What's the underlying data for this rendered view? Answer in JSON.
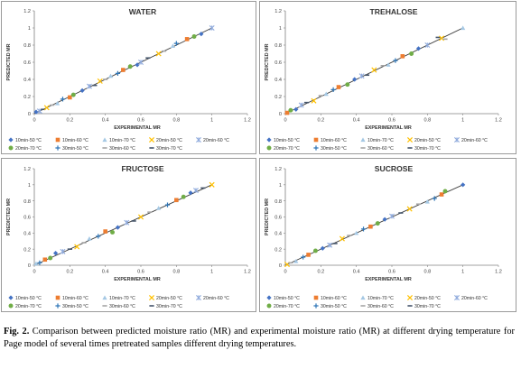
{
  "caption": {
    "label": "Fig. 2.",
    "text": "Comparison between predicted moisture ratio (MR) and experimental moisture ratio (MR) at different drying temperature for Page model of several times pretreated samples different drying temperatures."
  },
  "legend_series": [
    {
      "name": "10min-50 °C",
      "color": "#4472c4",
      "marker": "diamond"
    },
    {
      "name": "10min-60 °C",
      "color": "#ed7d31",
      "marker": "square"
    },
    {
      "name": "10min-70 °C",
      "color": "#a5c8e4",
      "marker": "triangle"
    },
    {
      "name": "20min-50 °C",
      "color": "#ffc000",
      "marker": "x"
    },
    {
      "name": "20min-60 °C",
      "color": "#8faadc",
      "marker": "star"
    },
    {
      "name": "20min-70 °C",
      "color": "#70ad47",
      "marker": "circle"
    },
    {
      "name": "30min-50 °C",
      "color": "#2e75b6",
      "marker": "plus"
    },
    {
      "name": "30min-60 °C",
      "color": "#a5a5a5",
      "marker": "dash"
    },
    {
      "name": "30min-70 °C",
      "color": "#44546a",
      "marker": "dash"
    }
  ],
  "chart_data": [
    {
      "type": "scatter",
      "title": "WATER",
      "xlabel": "EXPERIMENTAL MR",
      "ylabel": "PREDICTED MR",
      "xlim": [
        0,
        1.2
      ],
      "ylim": [
        0,
        1.2
      ],
      "xticks": [
        "0",
        "0.2",
        "0.4",
        "0.6",
        "0.8",
        "1",
        "1.2"
      ],
      "yticks": [
        "0",
        "0.2",
        "0.4",
        "0.6",
        "0.8",
        "1",
        "1.2"
      ],
      "reference_line": {
        "from": [
          0,
          0
        ],
        "to": [
          1,
          1
        ]
      },
      "points": [
        [
          0.01,
          0.02
        ],
        [
          0.03,
          0.03
        ],
        [
          0.05,
          0.05
        ],
        [
          0.07,
          0.07
        ],
        [
          0.1,
          0.1
        ],
        [
          0.13,
          0.12
        ],
        [
          0.16,
          0.17
        ],
        [
          0.2,
          0.19
        ],
        [
          0.22,
          0.22
        ],
        [
          0.27,
          0.27
        ],
        [
          0.31,
          0.32
        ],
        [
          0.34,
          0.33
        ],
        [
          0.37,
          0.38
        ],
        [
          0.4,
          0.4
        ],
        [
          0.43,
          0.44
        ],
        [
          0.47,
          0.47
        ],
        [
          0.5,
          0.51
        ],
        [
          0.54,
          0.55
        ],
        [
          0.58,
          0.57
        ],
        [
          0.6,
          0.6
        ],
        [
          0.64,
          0.65
        ],
        [
          0.7,
          0.7
        ],
        [
          0.73,
          0.73
        ],
        [
          0.78,
          0.79
        ],
        [
          0.8,
          0.82
        ],
        [
          0.86,
          0.87
        ],
        [
          0.9,
          0.9
        ],
        [
          0.94,
          0.93
        ],
        [
          1,
          1
        ]
      ]
    },
    {
      "type": "scatter",
      "title": "TREHALOSE",
      "xlabel": "EXPERIMENTAL MR",
      "ylabel": "PREDICTED MR",
      "xlim": [
        0,
        1.2
      ],
      "ylim": [
        0,
        1.2
      ],
      "xticks": [
        "0",
        "0.2",
        "0.4",
        "0.6",
        "0.8",
        "1",
        "1.2"
      ],
      "yticks": [
        "0",
        "0.2",
        "0.4",
        "0.6",
        "0.8",
        "1",
        "1.2"
      ],
      "reference_line": {
        "from": [
          0,
          0
        ],
        "to": [
          1,
          1
        ]
      },
      "points": [
        [
          0.01,
          0.01
        ],
        [
          0.03,
          0.04
        ],
        [
          0.06,
          0.05
        ],
        [
          0.09,
          0.1
        ],
        [
          0.12,
          0.13
        ],
        [
          0.16,
          0.15
        ],
        [
          0.2,
          0.21
        ],
        [
          0.23,
          0.23
        ],
        [
          0.27,
          0.28
        ],
        [
          0.3,
          0.31
        ],
        [
          0.35,
          0.34
        ],
        [
          0.39,
          0.4
        ],
        [
          0.43,
          0.44
        ],
        [
          0.46,
          0.45
        ],
        [
          0.5,
          0.51
        ],
        [
          0.55,
          0.56
        ],
        [
          0.58,
          0.57
        ],
        [
          0.62,
          0.62
        ],
        [
          0.66,
          0.67
        ],
        [
          0.71,
          0.7
        ],
        [
          0.75,
          0.76
        ],
        [
          0.8,
          0.8
        ],
        [
          0.86,
          0.89
        ],
        [
          0.88,
          0.88
        ],
        [
          0.9,
          0.87
        ],
        [
          1,
          1
        ]
      ]
    },
    {
      "type": "scatter",
      "title": "FRUCTOSE",
      "xlabel": "EXPERIMENTAL MR",
      "ylabel": "PREDICTED MR",
      "xlim": [
        0,
        1.2
      ],
      "ylim": [
        0,
        1.2
      ],
      "xticks": [
        "0",
        "0.2",
        "0.4",
        "0.6",
        "0.8",
        "1",
        "1.2"
      ],
      "yticks": [
        "0",
        "0.2",
        "0.4",
        "0.6",
        "0.8",
        "1",
        "1.2"
      ],
      "reference_line": {
        "from": [
          0,
          0
        ],
        "to": [
          1,
          1
        ]
      },
      "points": [
        [
          0.01,
          0.02
        ],
        [
          0.03,
          0.03
        ],
        [
          0.06,
          0.07
        ],
        [
          0.09,
          0.09
        ],
        [
          0.12,
          0.15
        ],
        [
          0.16,
          0.17
        ],
        [
          0.2,
          0.2
        ],
        [
          0.24,
          0.23
        ],
        [
          0.28,
          0.28
        ],
        [
          0.31,
          0.33
        ],
        [
          0.36,
          0.36
        ],
        [
          0.4,
          0.42
        ],
        [
          0.44,
          0.41
        ],
        [
          0.47,
          0.47
        ],
        [
          0.52,
          0.53
        ],
        [
          0.56,
          0.55
        ],
        [
          0.6,
          0.6
        ],
        [
          0.65,
          0.66
        ],
        [
          0.7,
          0.71
        ],
        [
          0.75,
          0.75
        ],
        [
          0.8,
          0.81
        ],
        [
          0.84,
          0.85
        ],
        [
          0.88,
          0.9
        ],
        [
          0.91,
          0.93
        ],
        [
          0.95,
          0.96
        ],
        [
          1,
          1
        ]
      ]
    },
    {
      "type": "scatter",
      "title": "SUCROSE",
      "xlabel": "EXPERIMENTAL MR",
      "ylabel": "PREDICTED MR",
      "xlim": [
        0,
        1.2
      ],
      "ylim": [
        0,
        1.2
      ],
      "xticks": [
        "0",
        "0.2",
        "0.4",
        "0.6",
        "0.8",
        "1",
        "1.2"
      ],
      "yticks": [
        "0",
        "0.2",
        "0.4",
        "0.6",
        "0.8",
        "1",
        "1.2"
      ],
      "reference_line": {
        "from": [
          0,
          0
        ],
        "to": [
          1,
          1
        ]
      },
      "points": [
        [
          0.01,
          0.01
        ],
        [
          0.03,
          0.03
        ],
        [
          0.06,
          0.05
        ],
        [
          0.1,
          0.1
        ],
        [
          0.13,
          0.13
        ],
        [
          0.17,
          0.18
        ],
        [
          0.21,
          0.21
        ],
        [
          0.25,
          0.25
        ],
        [
          0.28,
          0.27
        ],
        [
          0.32,
          0.33
        ],
        [
          0.36,
          0.37
        ],
        [
          0.4,
          0.4
        ],
        [
          0.44,
          0.45
        ],
        [
          0.48,
          0.48
        ],
        [
          0.52,
          0.52
        ],
        [
          0.56,
          0.57
        ],
        [
          0.6,
          0.61
        ],
        [
          0.65,
          0.65
        ],
        [
          0.7,
          0.7
        ],
        [
          0.75,
          0.76
        ],
        [
          0.8,
          0.79
        ],
        [
          0.84,
          0.83
        ],
        [
          0.88,
          0.88
        ],
        [
          0.9,
          0.92
        ],
        [
          1,
          1
        ]
      ]
    }
  ]
}
